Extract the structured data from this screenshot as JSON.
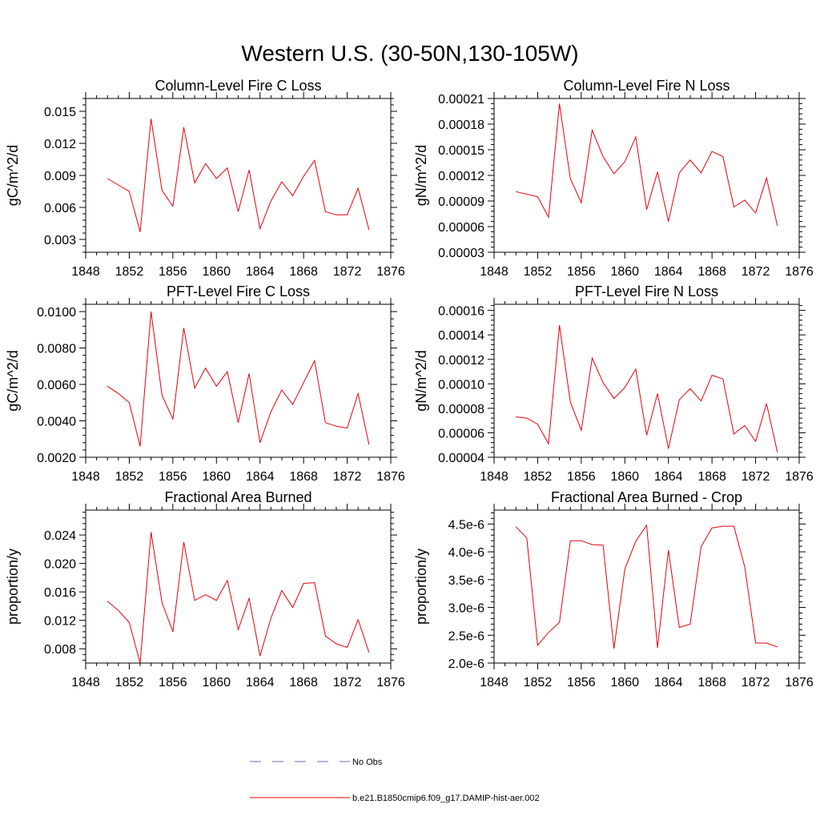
{
  "figure": {
    "title": "Western U.S. (30-50N,130-105W)",
    "legend": [
      {
        "label": "No Obs",
        "style": "dashed",
        "color": "#6b6bb0"
      },
      {
        "label": "b.e21.B1850cmip6.f09_g17.DAMIP-hist-aer.002",
        "style": "solid",
        "color": "#e8000b"
      }
    ]
  },
  "chart_data": [
    {
      "type": "line",
      "title": "Column-Level Fire C Loss",
      "ylabel": "gC/m^2/d",
      "xlim": [
        1848,
        1876
      ],
      "ylim": [
        0.0018,
        0.0162
      ],
      "xticks": [
        1848,
        1852,
        1856,
        1860,
        1864,
        1868,
        1872,
        1876
      ],
      "yticks": [
        0.003,
        0.006,
        0.009,
        0.012,
        0.015
      ],
      "ytick_labels": [
        "0.003",
        "0.006",
        "0.009",
        "0.012",
        "0.015"
      ],
      "x": [
        1850,
        1851,
        1852,
        1853,
        1854,
        1855,
        1856,
        1857,
        1858,
        1859,
        1860,
        1861,
        1862,
        1863,
        1864,
        1865,
        1866,
        1867,
        1868,
        1869,
        1870,
        1871,
        1872,
        1873,
        1874
      ],
      "series": [
        {
          "color": "#e8000b",
          "values": [
            0.0087,
            0.0081,
            0.0075,
            0.0037,
            0.0143,
            0.0076,
            0.0061,
            0.0135,
            0.0083,
            0.0101,
            0.0087,
            0.0097,
            0.0056,
            0.0095,
            0.004,
            0.0066,
            0.0084,
            0.0071,
            0.0089,
            0.0104,
            0.0056,
            0.0053,
            0.0053,
            0.0078,
            0.0039
          ]
        }
      ]
    },
    {
      "type": "line",
      "title": "Column-Level Fire N Loss",
      "ylabel": "gN/m^2/d",
      "xlim": [
        1848,
        1876
      ],
      "ylim": [
        3e-05,
        0.00021
      ],
      "xticks": [
        1848,
        1852,
        1856,
        1860,
        1864,
        1868,
        1872,
        1876
      ],
      "yticks": [
        3e-05,
        6e-05,
        9e-05,
        0.00012,
        0.00015,
        0.00018,
        0.00021
      ],
      "ytick_labels": [
        "0.00003",
        "0.00006",
        "0.00009",
        "0.00012",
        "0.00015",
        "0.00018",
        "0.00021"
      ],
      "x": [
        1850,
        1851,
        1852,
        1853,
        1854,
        1855,
        1856,
        1857,
        1858,
        1859,
        1860,
        1861,
        1862,
        1863,
        1864,
        1865,
        1866,
        1867,
        1868,
        1869,
        1870,
        1871,
        1872,
        1873,
        1874
      ],
      "series": [
        {
          "color": "#e8000b",
          "values": [
            0.000101,
            9.8e-05,
            9.5e-05,
            7.1e-05,
            0.000204,
            0.000116,
            8.8e-05,
            0.000173,
            0.000142,
            0.000122,
            0.000136,
            0.000165,
            8e-05,
            0.000124,
            6.6e-05,
            0.000123,
            0.000138,
            0.000123,
            0.000148,
            0.000142,
            8.3e-05,
            9.1e-05,
            7.6e-05,
            0.000117,
            6.1e-05
          ]
        }
      ]
    },
    {
      "type": "line",
      "title": "PFT-Level Fire C Loss",
      "ylabel": "gC/m^2/d",
      "xlim": [
        1848,
        1876
      ],
      "ylim": [
        0.002,
        0.0104
      ],
      "xticks": [
        1848,
        1852,
        1856,
        1860,
        1864,
        1868,
        1872,
        1876
      ],
      "yticks": [
        0.002,
        0.004,
        0.006,
        0.008,
        0.01
      ],
      "ytick_labels": [
        "0.0020",
        "0.0040",
        "0.0060",
        "0.0080",
        "0.0100"
      ],
      "x": [
        1850,
        1851,
        1852,
        1853,
        1854,
        1855,
        1856,
        1857,
        1858,
        1859,
        1860,
        1861,
        1862,
        1863,
        1864,
        1865,
        1866,
        1867,
        1868,
        1869,
        1870,
        1871,
        1872,
        1873,
        1874
      ],
      "series": [
        {
          "color": "#e8000b",
          "values": [
            0.0059,
            0.0055,
            0.005,
            0.0026,
            0.01,
            0.0054,
            0.0041,
            0.0091,
            0.0058,
            0.0069,
            0.0059,
            0.0067,
            0.0039,
            0.0066,
            0.0028,
            0.0045,
            0.0057,
            0.0049,
            0.0061,
            0.0073,
            0.0039,
            0.0037,
            0.0036,
            0.0055,
            0.0027
          ]
        }
      ]
    },
    {
      "type": "line",
      "title": "PFT-Level Fire N Loss",
      "ylabel": "gN/m^2/d",
      "xlim": [
        1848,
        1876
      ],
      "ylim": [
        4e-05,
        0.000165
      ],
      "xticks": [
        1848,
        1852,
        1856,
        1860,
        1864,
        1868,
        1872,
        1876
      ],
      "yticks": [
        4e-05,
        6e-05,
        8e-05,
        0.0001,
        0.00012,
        0.00014,
        0.00016
      ],
      "ytick_labels": [
        "0.00004",
        "0.00006",
        "0.00008",
        "0.00010",
        "0.00012",
        "0.00014",
        "0.00016"
      ],
      "x": [
        1850,
        1851,
        1852,
        1853,
        1854,
        1855,
        1856,
        1857,
        1858,
        1859,
        1860,
        1861,
        1862,
        1863,
        1864,
        1865,
        1866,
        1867,
        1868,
        1869,
        1870,
        1871,
        1872,
        1873,
        1874
      ],
      "series": [
        {
          "color": "#e8000b",
          "values": [
            7.3e-05,
            7.2e-05,
            6.7e-05,
            5.1e-05,
            0.000148,
            8.5e-05,
            6.2e-05,
            0.000121,
            0.000101,
            8.8e-05,
            9.7e-05,
            0.000112,
            5.8e-05,
            9.2e-05,
            4.7e-05,
            8.7e-05,
            9.6e-05,
            8.6e-05,
            0.000107,
            0.000104,
            5.9e-05,
            6.6e-05,
            5.3e-05,
            8.4e-05,
            4.4e-05
          ]
        }
      ]
    },
    {
      "type": "line",
      "title": "Fractional Area Burned",
      "ylabel": "proportion/y",
      "xlim": [
        1848,
        1876
      ],
      "ylim": [
        0.006,
        0.0275
      ],
      "xticks": [
        1848,
        1852,
        1856,
        1860,
        1864,
        1868,
        1872,
        1876
      ],
      "yticks": [
        0.008,
        0.012,
        0.016,
        0.02,
        0.024
      ],
      "ytick_labels": [
        "0.008",
        "0.012",
        "0.016",
        "0.020",
        "0.024"
      ],
      "x": [
        1850,
        1851,
        1852,
        1853,
        1854,
        1855,
        1856,
        1857,
        1858,
        1859,
        1860,
        1861,
        1862,
        1863,
        1864,
        1865,
        1866,
        1867,
        1868,
        1869,
        1870,
        1871,
        1872,
        1873,
        1874
      ],
      "series": [
        {
          "color": "#e8000b",
          "values": [
            0.0147,
            0.0134,
            0.0117,
            0.006,
            0.0244,
            0.0145,
            0.0104,
            0.023,
            0.0148,
            0.0156,
            0.0148,
            0.0176,
            0.0107,
            0.0151,
            0.007,
            0.0123,
            0.0162,
            0.0138,
            0.0172,
            0.0173,
            0.0098,
            0.0087,
            0.0082,
            0.0121,
            0.0075
          ]
        }
      ]
    },
    {
      "type": "line",
      "title": "Fractional Area Burned - Crop",
      "ylabel": "proportion/y",
      "xlim": [
        1848,
        1876
      ],
      "ylim": [
        2e-06,
        4.75e-06
      ],
      "xticks": [
        1848,
        1852,
        1856,
        1860,
        1864,
        1868,
        1872,
        1876
      ],
      "yticks": [
        2e-06,
        2.5e-06,
        3e-06,
        3.5e-06,
        4e-06,
        4.5e-06
      ],
      "ytick_labels": [
        "2.0e-6",
        "2.5e-6",
        "3.0e-6",
        "3.5e-6",
        "4.0e-6",
        "4.5e-6"
      ],
      "x": [
        1850,
        1851,
        1852,
        1853,
        1854,
        1855,
        1856,
        1857,
        1858,
        1859,
        1860,
        1861,
        1862,
        1863,
        1864,
        1865,
        1866,
        1867,
        1868,
        1869,
        1870,
        1871,
        1872,
        1873,
        1874
      ],
      "series": [
        {
          "color": "#e8000b",
          "values": [
            4.45e-06,
            4.25e-06,
            2.32e-06,
            2.55e-06,
            2.73e-06,
            4.2e-06,
            4.2e-06,
            4.13e-06,
            4.12e-06,
            2.26e-06,
            3.69e-06,
            4.19e-06,
            4.48e-06,
            2.27e-06,
            4.03e-06,
            2.64e-06,
            2.7e-06,
            4.09e-06,
            4.43e-06,
            4.46e-06,
            4.46e-06,
            3.73e-06,
            2.36e-06,
            2.36e-06,
            2.29e-06
          ]
        }
      ]
    }
  ]
}
